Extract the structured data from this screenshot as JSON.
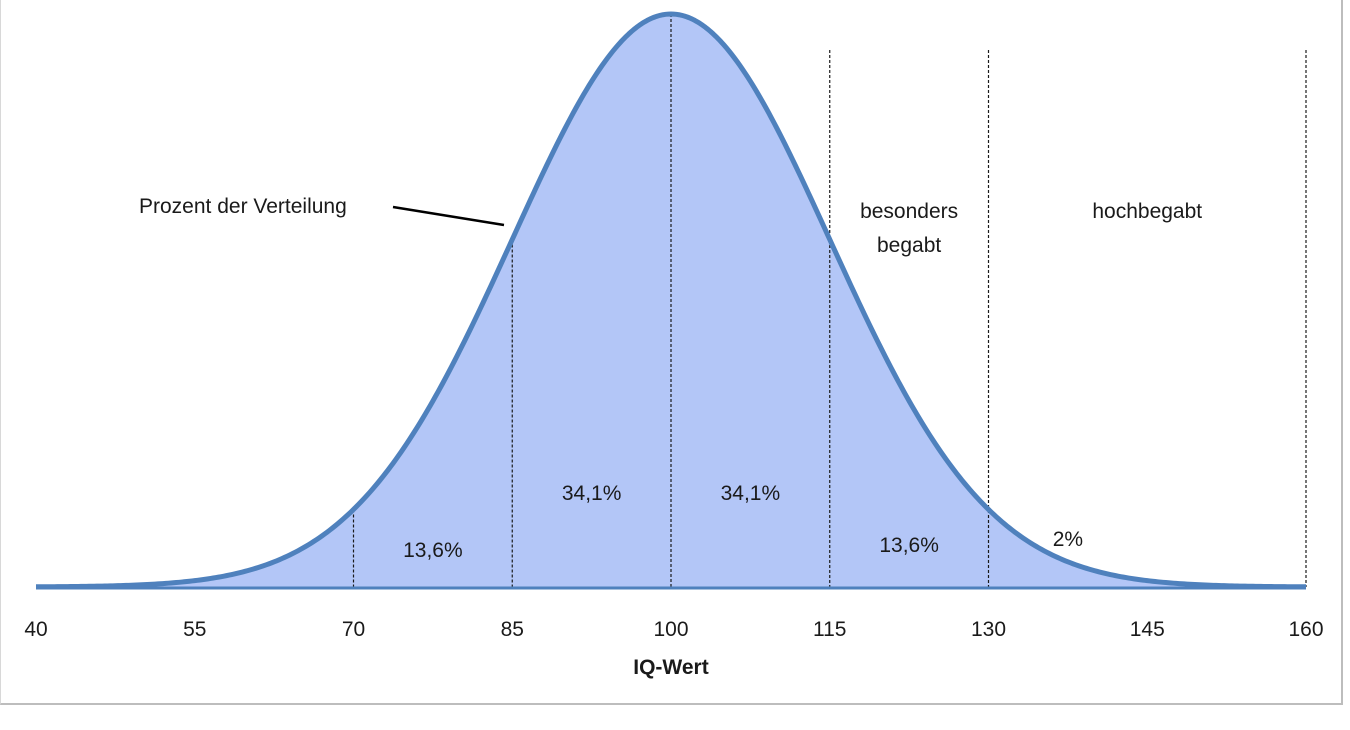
{
  "chart_data": {
    "type": "area",
    "xlabel": "IQ-Wert",
    "ylabel": "",
    "xlim": [
      40,
      160
    ],
    "xticks": [
      {
        "value": 40,
        "label": "40"
      },
      {
        "value": 55,
        "label": "55"
      },
      {
        "value": 70,
        "label": "70"
      },
      {
        "value": 85,
        "label": "85"
      },
      {
        "value": 100,
        "label": "100"
      },
      {
        "value": 115,
        "label": "115"
      },
      {
        "value": 130,
        "label": "130"
      },
      {
        "value": 145,
        "label": "145"
      },
      {
        "value": 160,
        "label": "160"
      }
    ],
    "distribution": {
      "kind": "normal",
      "mean": 100,
      "sd": 15
    },
    "dividers": [
      70,
      85,
      100,
      115,
      130,
      160
    ],
    "region_labels": [
      {
        "text": "13,6%",
        "x": 77.5
      },
      {
        "text": "34,1%",
        "x": 92.5
      },
      {
        "text": "34,1%",
        "x": 107.5
      },
      {
        "text": "13,6%",
        "x": 122.5
      },
      {
        "text": "2%",
        "x": 137.5
      }
    ],
    "category_labels": [
      {
        "lines": [
          "besonders",
          "begabt"
        ],
        "x_from": 115,
        "x_to": 130
      },
      {
        "lines": [
          "hochbegabt"
        ],
        "x_from": 130,
        "x_to": 160
      }
    ],
    "annotation": {
      "text": "Prozent der Verteilung"
    },
    "colors": {
      "curve": "#4f81bd",
      "fill": "#b3c6f7",
      "divider": "#1a1a1a",
      "axis": "#1a1a1a"
    },
    "grid": false,
    "legend": "none"
  }
}
